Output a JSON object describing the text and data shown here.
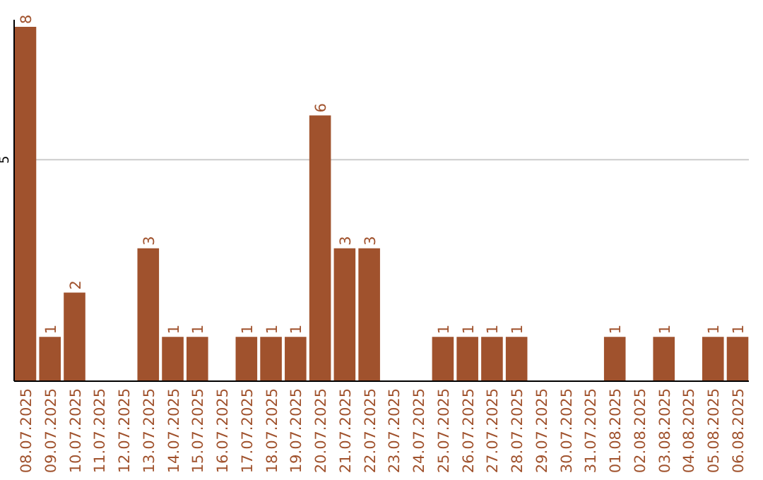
{
  "chart_data": {
    "type": "bar",
    "categories": [
      "08.07.2025",
      "09.07.2025",
      "10.07.2025",
      "11.07.2025",
      "12.07.2025",
      "13.07.2025",
      "14.07.2025",
      "15.07.2025",
      "16.07.2025",
      "17.07.2025",
      "18.07.2025",
      "19.07.2025",
      "20.07.2025",
      "21.07.2025",
      "22.07.2025",
      "23.07.2025",
      "24.07.2025",
      "25.07.2025",
      "26.07.2025",
      "27.07.2025",
      "28.07.2025",
      "29.07.2025",
      "30.07.2025",
      "31.07.2025",
      "01.08.2025",
      "02.08.2025",
      "03.08.2025",
      "04.08.2025",
      "05.08.2025",
      "06.08.2025"
    ],
    "values": [
      8,
      1,
      2,
      0,
      0,
      3,
      1,
      1,
      0,
      1,
      1,
      1,
      6,
      3,
      3,
      0,
      0,
      1,
      1,
      1,
      1,
      0,
      0,
      0,
      1,
      0,
      1,
      0,
      1,
      1
    ],
    "value_labels": [
      "8",
      "1",
      "2",
      null,
      null,
      "3",
      "1",
      "1",
      null,
      "1",
      "1",
      "1",
      "6",
      "3",
      "3",
      null,
      null,
      "1",
      "1",
      "1",
      "1",
      null,
      null,
      null,
      "1",
      null,
      "1",
      null,
      "1",
      "1"
    ],
    "color": "#a0522d",
    "ylim": [
      0,
      8
    ],
    "yticks": [
      5
    ],
    "grid": "y"
  }
}
